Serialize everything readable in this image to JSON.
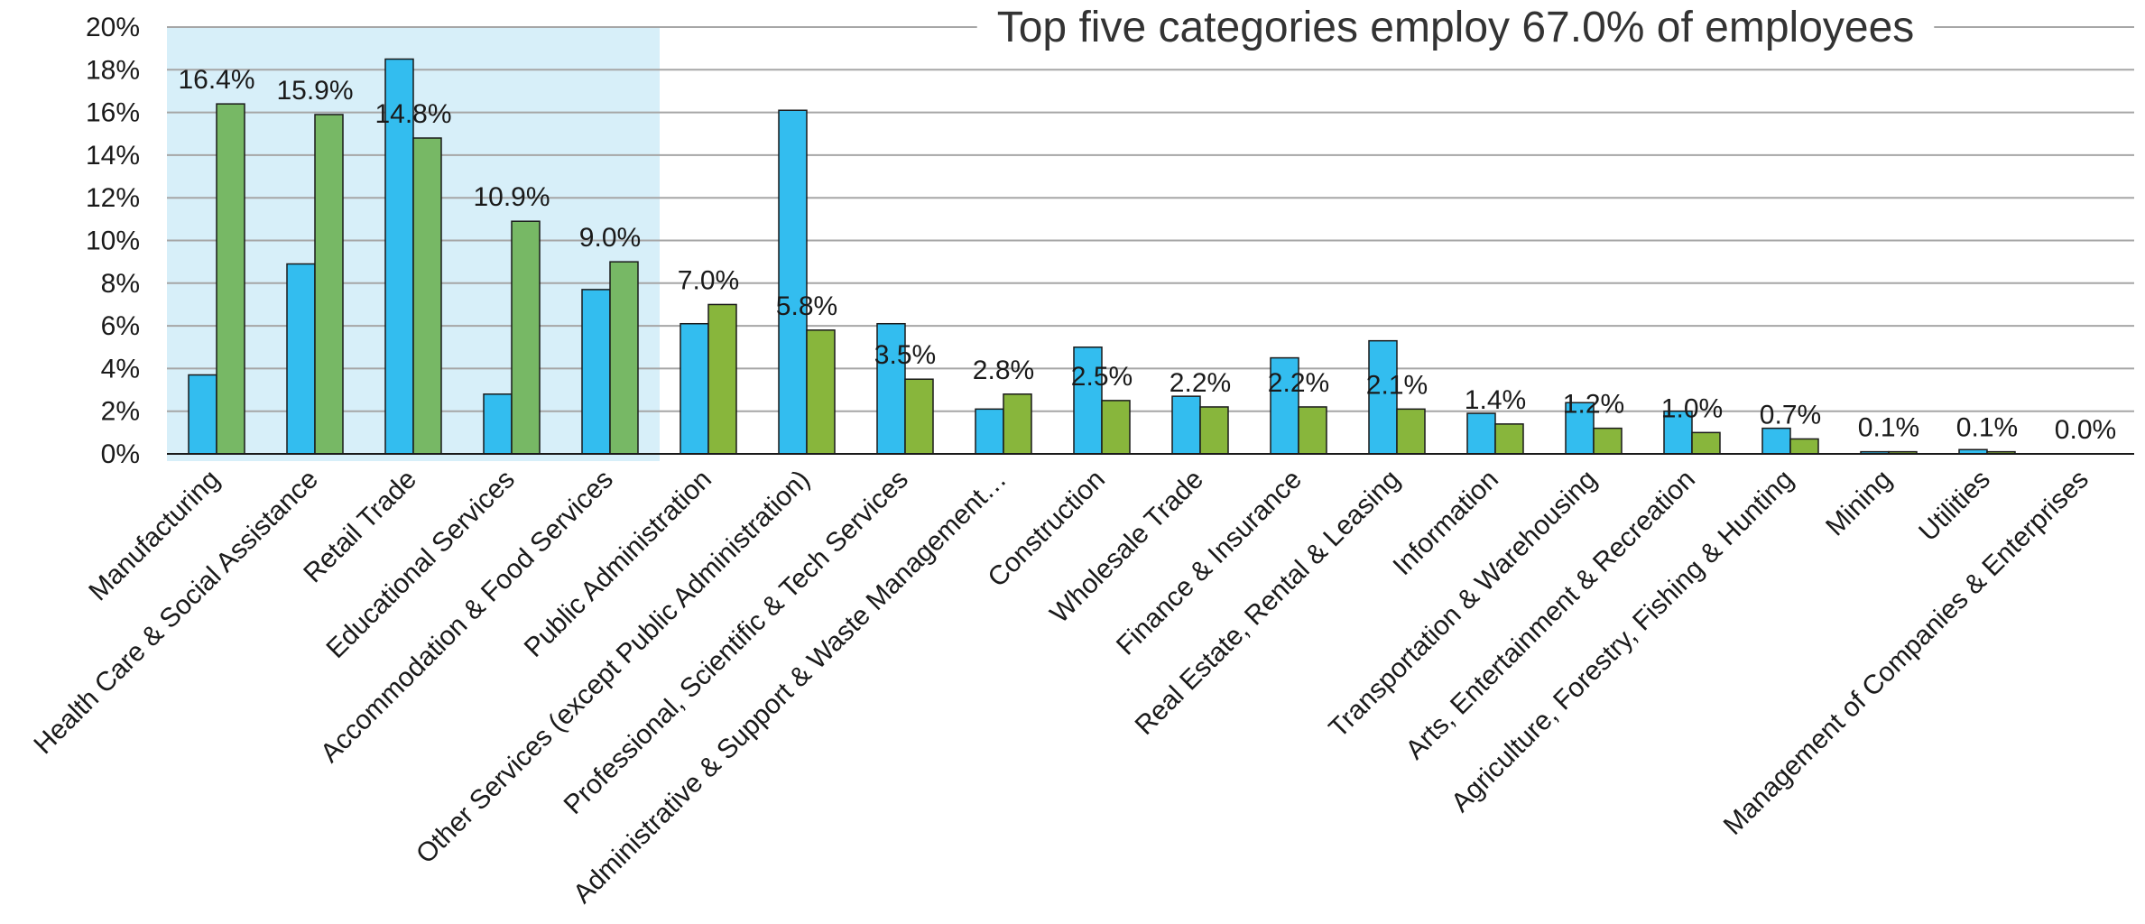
{
  "chart_data": {
    "type": "bar",
    "title": "Top five categories employ 67.0% of employees",
    "xlabel": "",
    "ylabel": "",
    "ylim": [
      0,
      20
    ],
    "y_ticks": [
      "0%",
      "2%",
      "4%",
      "6%",
      "8%",
      "10%",
      "12%",
      "14%",
      "16%",
      "18%",
      "20%"
    ],
    "grid": "horizontal",
    "highlight_band": {
      "from_category": "Manufacturing",
      "to_category": "Accommodation & Food Services",
      "color": "#d7eff9"
    },
    "categories": [
      "Manufacturing",
      "Health Care & Social Assistance",
      "Retail Trade",
      "Educational Services",
      "Accommodation & Food Services",
      "Public Administration",
      "Other Services (except Public Administration)",
      "Professional, Scientific & Tech Services",
      "Administrative & Support & Waste Management…",
      "Construction",
      "Wholesale Trade",
      "Finance & Insurance",
      "Real Estate, Rental & Leasing",
      "Information",
      "Transportation & Warehousing",
      "Arts, Entertainment & Recreation",
      "Agriculture, Forestry, Fishing & Hunting",
      "Mining",
      "Utilities",
      "Management of Companies & Enterprises"
    ],
    "series": [
      {
        "color": "#33bdef",
        "values": [
          3.7,
          8.9,
          18.5,
          2.8,
          7.7,
          6.1,
          16.1,
          6.1,
          2.1,
          5.0,
          2.7,
          4.5,
          5.3,
          1.9,
          2.4,
          2.0,
          1.2,
          0.1,
          0.2,
          0.0
        ]
      },
      {
        "color_highlight": "#77b865",
        "color": "#88b63c",
        "values": [
          16.4,
          15.9,
          14.8,
          10.9,
          9.0,
          7.0,
          5.8,
          3.5,
          2.8,
          2.5,
          2.2,
          2.2,
          2.1,
          1.4,
          1.2,
          1.0,
          0.7,
          0.1,
          0.1,
          0.0
        ],
        "data_labels": [
          "16.4%",
          "15.9%",
          "14.8%",
          "10.9%",
          "9.0%",
          "7.0%",
          "5.8%",
          "3.5%",
          "2.8%",
          "2.5%",
          "2.2%",
          "2.2%",
          "2.1%",
          "1.4%",
          "1.2%",
          "1.0%",
          "0.7%",
          "0.1%",
          "0.1%",
          "0.0%"
        ]
      }
    ]
  }
}
